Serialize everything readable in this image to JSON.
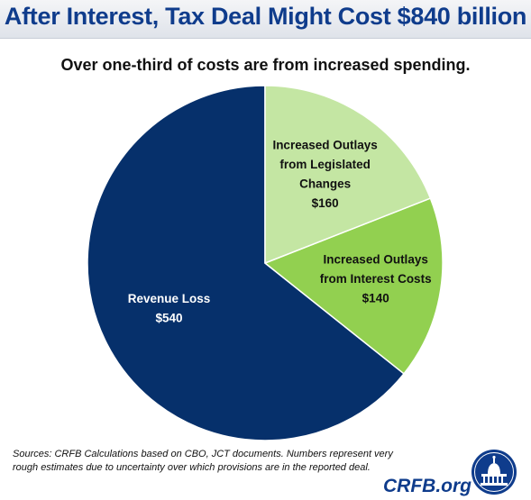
{
  "header": {
    "title": "After Interest, Tax Deal Might Cost $840 billion",
    "subtitle": "Over one-third of costs are from increased spending."
  },
  "chart_data": {
    "type": "pie",
    "title": "After Interest, Tax Deal Might Cost $840 billion",
    "subtitle": "Over one-third of costs are from increased spending.",
    "slices": [
      {
        "label": [
          "Revenue Loss",
          "$540"
        ],
        "value": 540,
        "color": "#06306b",
        "label_color": "#ffffff"
      },
      {
        "label": [
          "Increased Outlays",
          "from Interest Costs",
          "$140"
        ],
        "value": 140,
        "color": "#92d050",
        "label_color": "#111111"
      },
      {
        "label": [
          "Increased Outlays",
          "from Legislated",
          "Changes",
          "$160"
        ],
        "value": 160,
        "color": "#c4e6a3",
        "label_color": "#111111"
      }
    ],
    "start": "12 o'clock",
    "direction": "counter-clockwise from Revenue Loss",
    "unit": "billion"
  },
  "footer": {
    "source_lines": [
      "Sources: CRFB Calculations based on CBO, JCT documents. Numbers represent very",
      "rough estimates due to uncertainty over which provisions are in the reported deal."
    ],
    "brand": "CRFB.org"
  },
  "colors": {
    "title": "#0f3c8c",
    "brand": "#0f3c8c",
    "slice_border": "#ffffff"
  },
  "icons": {
    "seal": "capitol-dome-seal"
  }
}
